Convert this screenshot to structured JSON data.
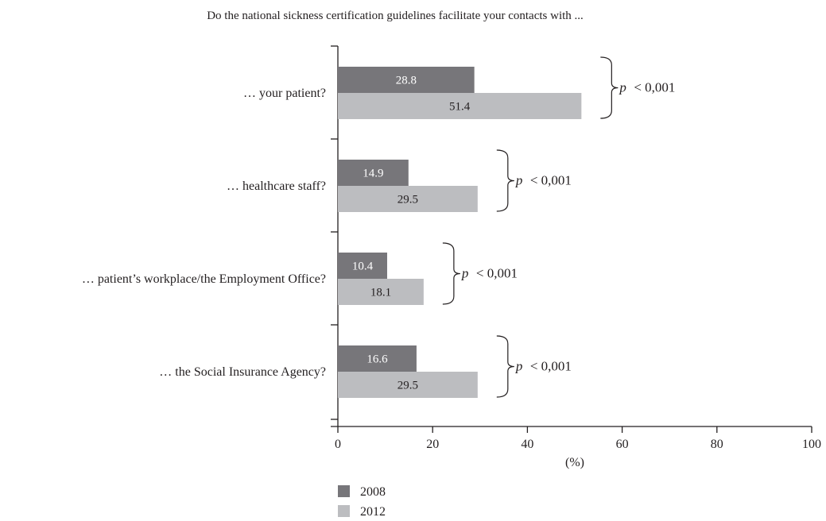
{
  "chart_data": {
    "type": "bar",
    "orientation": "horizontal",
    "title": "Do the national sickness certification guidelines facilitate your contacts with ...",
    "xlabel": "(%)",
    "xlim": [
      0,
      100
    ],
    "xticks": [
      0,
      20,
      40,
      60,
      80,
      100
    ],
    "categories": [
      "… your patient?",
      "… healthcare staff?",
      "… patient’s workplace/the Employment Office?",
      "… the Social Insurance Agency?"
    ],
    "series": [
      {
        "name": "2008",
        "color": "#77767a",
        "values": [
          28.8,
          14.9,
          10.4,
          16.6
        ]
      },
      {
        "name": "2012",
        "color": "#bcbdc0",
        "values": [
          51.4,
          29.5,
          18.1,
          29.5
        ]
      }
    ],
    "value_labels": [
      [
        "28.8",
        "14.9",
        "10.4",
        "16.6"
      ],
      [
        "51.4",
        "29.5",
        "18.1",
        "29.5"
      ]
    ],
    "annotations": {
      "p_symbol": "p",
      "p_text": "< 0,001"
    },
    "legend_position": "bottom"
  }
}
